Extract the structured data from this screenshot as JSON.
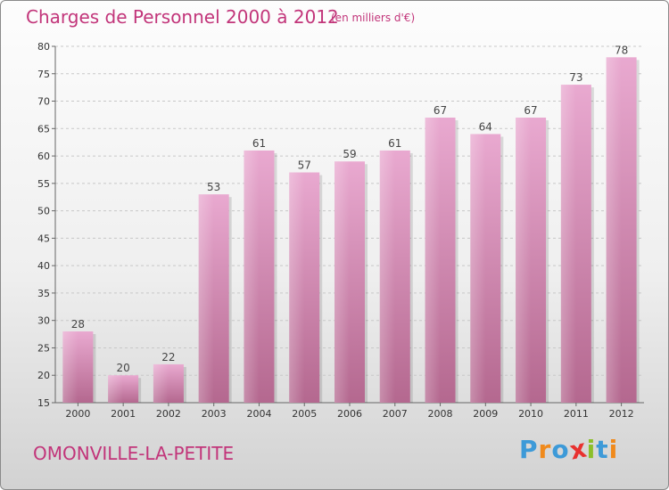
{
  "title": "Charges de Personnel 2000 à 2012",
  "subtitle": "(en milliers d'€)",
  "city": "OMONVILLE-LA-PETITE",
  "logo": {
    "letters": [
      "P",
      "r",
      "o",
      "x",
      "i",
      "t",
      "i"
    ],
    "colors": [
      "#3d9ad8",
      "#f08a1c",
      "#3d9ad8",
      "#e8312f",
      "#8cbf2a",
      "#3d9ad8",
      "#f08a1c"
    ]
  },
  "colors": {
    "bar_top": "#e9a9d0",
    "bar_bottom": "#b4688f",
    "text_accent": "#c2357a"
  },
  "chart_data": {
    "type": "bar",
    "title": "Charges de Personnel 2000 à 2012",
    "subtitle": "(en milliers d'€)",
    "categories": [
      "2000",
      "2001",
      "2002",
      "2003",
      "2004",
      "2005",
      "2006",
      "2007",
      "2008",
      "2009",
      "2010",
      "2011",
      "2012"
    ],
    "values": [
      28,
      20,
      22,
      53,
      61,
      57,
      59,
      61,
      67,
      64,
      67,
      73,
      78
    ],
    "ylim": [
      15,
      80
    ],
    "yticks": [
      15,
      20,
      25,
      30,
      35,
      40,
      45,
      50,
      55,
      60,
      65,
      70,
      75,
      80
    ],
    "grid": true,
    "data_labels": true
  }
}
